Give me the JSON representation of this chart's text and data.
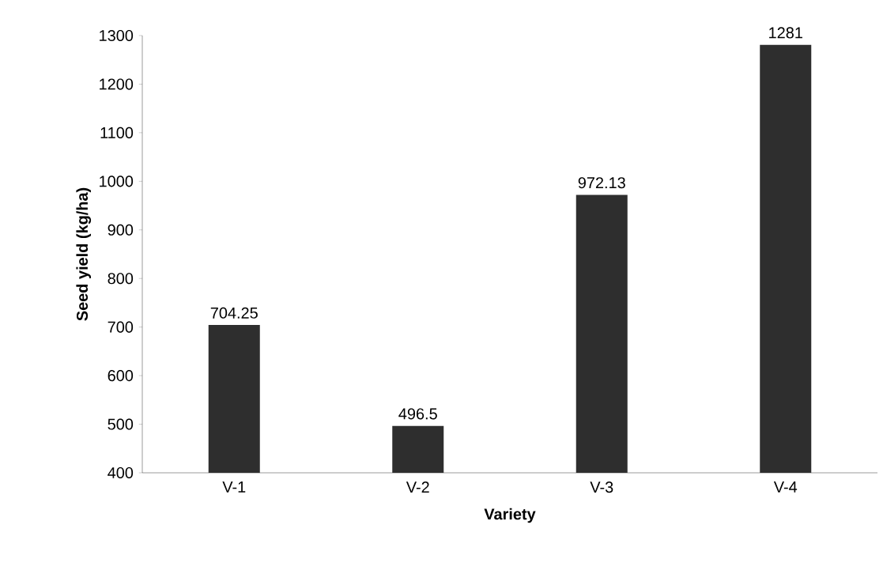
{
  "chart_data": {
    "type": "bar",
    "xlabel": "Variety",
    "ylabel": "Seed yield (kg/ha)",
    "categories": [
      "V-1",
      "V-2",
      "V-3",
      "V-4"
    ],
    "values": [
      704.25,
      496.5,
      972.13,
      1281
    ],
    "color": "#2e2e2e",
    "data_labels": true,
    "grid": false,
    "ylim": [
      400,
      1300
    ],
    "yticks": [
      400,
      500,
      600,
      700,
      800,
      900,
      1000,
      1100,
      1200,
      1300
    ]
  }
}
